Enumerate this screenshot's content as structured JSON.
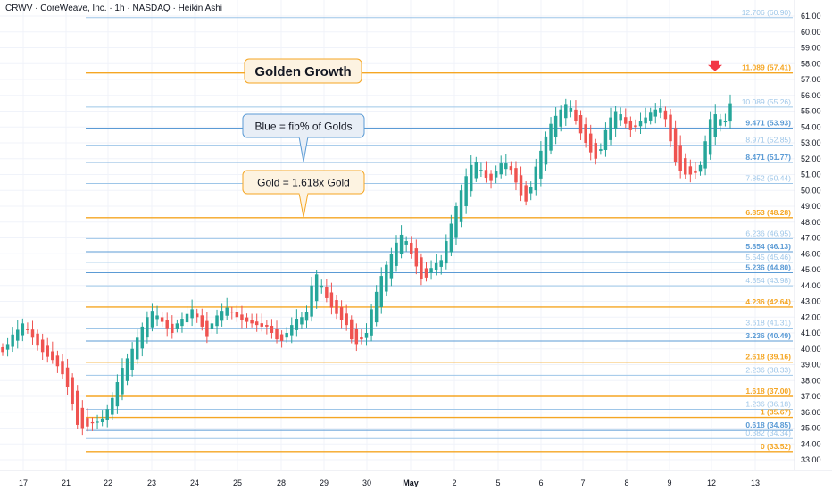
{
  "header": {
    "title": "CRWV · CoreWeave, Inc. · 1h · NASDAQ · Heikin Ashi"
  },
  "colors": {
    "gold": "#f5a623",
    "blue": "#5b9bd5",
    "light_blue": "#9ec6e8",
    "up": "#26a69a",
    "down": "#ef5350",
    "callout_blue_bg": "#e8eef6",
    "callout_gold_bg": "#fdf3e1",
    "marker": "#f23645"
  },
  "chart_data": {
    "type": "candlestick",
    "title": "CRWV · CoreWeave, Inc. · 1h · NASDAQ · Heikin Ashi",
    "ylim": [
      32.6,
      62.2
    ],
    "y_ticks": [
      33,
      34,
      35,
      36,
      37,
      38,
      39,
      40,
      41,
      42,
      43,
      44,
      45,
      46,
      47,
      48,
      49,
      50,
      51,
      52,
      53,
      54,
      55,
      56,
      57,
      58,
      59,
      60,
      61
    ],
    "y_tick_labels": [
      "33.00",
      "34.00",
      "35.00",
      "36.00",
      "37.00",
      "38.00",
      "39.00",
      "40.00",
      "41.00",
      "42.00",
      "43.00",
      "44.00",
      "45.00",
      "46.00",
      "47.00",
      "48.00",
      "49.00",
      "50.00",
      "51.00",
      "52.00",
      "53.00",
      "54.00",
      "55.00",
      "56.00",
      "57.00",
      "58.00",
      "59.00",
      "60.00",
      "61.00"
    ],
    "x_tick_labels": [
      "17",
      "21",
      "22",
      "23",
      "24",
      "25",
      "28",
      "29",
      "30",
      "May",
      "2",
      "5",
      "6",
      "7",
      "8",
      "9",
      "12",
      "13"
    ],
    "fib_levels": [
      {
        "label": "12.706 (60.90)",
        "price": 60.9,
        "kind": "light"
      },
      {
        "label": "11.089 (57.41)",
        "price": 57.41,
        "kind": "gold"
      },
      {
        "label": "10.089 (55.26)",
        "price": 55.26,
        "kind": "light"
      },
      {
        "label": "9.471 (53.93)",
        "price": 53.93,
        "kind": "blue"
      },
      {
        "label": "8.971 (52.85)",
        "price": 52.85,
        "kind": "light"
      },
      {
        "label": "8.471 (51.77)",
        "price": 51.77,
        "kind": "blue"
      },
      {
        "label": "7.852 (50.44)",
        "price": 50.44,
        "kind": "light"
      },
      {
        "label": "6.853 (48.28)",
        "price": 48.28,
        "kind": "gold"
      },
      {
        "label": "6.236 (46.95)",
        "price": 46.95,
        "kind": "light"
      },
      {
        "label": "5.854 (46.13)",
        "price": 46.13,
        "kind": "blue"
      },
      {
        "label": "5.545 (45.46)",
        "price": 45.46,
        "kind": "light"
      },
      {
        "label": "5.236 (44.80)",
        "price": 44.8,
        "kind": "blue"
      },
      {
        "label": "4.854 (43.98)",
        "price": 43.98,
        "kind": "light"
      },
      {
        "label": "4.236 (42.64)",
        "price": 42.64,
        "kind": "gold"
      },
      {
        "label": "3.618 (41.31)",
        "price": 41.31,
        "kind": "light"
      },
      {
        "label": "3.236 (40.49)",
        "price": 40.49,
        "kind": "blue"
      },
      {
        "label": "2.618 (39.16)",
        "price": 39.16,
        "kind": "gold"
      },
      {
        "label": "2.236 (38.33)",
        "price": 38.33,
        "kind": "light"
      },
      {
        "label": "1.618 (37.00)",
        "price": 37.0,
        "kind": "gold"
      },
      {
        "label": "1.236 (36.18)",
        "price": 36.18,
        "kind": "light"
      },
      {
        "label": "1 (35.67)",
        "price": 35.67,
        "kind": "gold"
      },
      {
        "label": "0.618 (34.85)",
        "price": 34.85,
        "kind": "blue"
      },
      {
        "label": "0.382 (34.34)",
        "price": 34.34,
        "kind": "light"
      },
      {
        "label": "0 (33.52)",
        "price": 33.52,
        "kind": "gold"
      }
    ],
    "annotations": [
      {
        "text": "Golden Growth",
        "style": "gold",
        "size": "large",
        "anchor_price": 57.41
      },
      {
        "text": "Blue = fib% of Golds",
        "style": "blue",
        "pointer": "down",
        "anchor_price": 51.77
      },
      {
        "text": "Gold = 1.618x Gold",
        "style": "gold",
        "pointer": "down",
        "anchor_price": 48.28
      }
    ],
    "marker": {
      "type": "down-arrow",
      "price": 57.41,
      "session": "12"
    },
    "series": [
      {
        "name": "",
        "type": "heikin-ashi",
        "close": [
          39.8,
          40.3,
          40.9,
          41.2,
          41.6,
          41.2,
          40.7,
          40.2,
          39.8,
          39.5,
          39.3,
          38.9,
          38.4,
          37.6,
          36.5,
          35.2,
          35.0,
          35.1,
          35.3,
          35.4,
          35.6,
          36.2,
          36.9,
          37.9,
          38.8,
          39.4,
          40.0,
          40.7,
          41.4,
          42.0,
          42.4,
          42.1,
          41.7,
          41.3,
          41.0,
          41.6,
          41.9,
          42.2,
          42.5,
          42.0,
          41.4,
          40.8,
          41.6,
          42.1,
          42.4,
          42.6,
          42.3,
          42.0,
          41.8,
          41.7,
          41.6,
          41.5,
          41.4,
          41.4,
          41.0,
          40.6,
          40.5,
          41.0,
          41.5,
          41.9,
          42.0,
          42.3,
          44.0,
          44.7,
          44.0,
          43.2,
          42.6,
          42.2,
          41.8,
          41.5,
          40.6,
          40.3,
          40.6,
          41.0,
          42.5,
          43.6,
          44.6,
          45.3,
          46.0,
          46.7,
          47.2,
          46.8,
          46.0,
          45.2,
          44.4,
          44.5,
          45.1,
          45.4,
          45.6,
          46.8,
          47.9,
          49.0,
          50.0,
          50.9,
          51.6,
          51.8,
          51.3,
          50.8,
          50.6,
          51.2,
          51.7,
          51.7,
          51.3,
          50.5,
          49.7,
          49.3,
          50.2,
          51.5,
          52.5,
          53.4,
          54.2,
          54.7,
          55.1,
          55.4,
          55.2,
          54.4,
          53.6,
          53.0,
          52.4,
          52.0,
          52.6,
          53.8,
          54.6,
          55.0,
          54.8,
          54.2,
          53.8,
          54.0,
          54.4,
          54.6,
          54.9,
          55.1,
          55.2,
          54.5,
          53.1,
          51.8,
          51.2,
          51.0,
          51.0,
          51.1,
          51.6,
          53.1,
          54.5,
          54.8,
          54.5,
          54.4,
          55.5
        ],
        "start_price": 40.1
      }
    ]
  }
}
